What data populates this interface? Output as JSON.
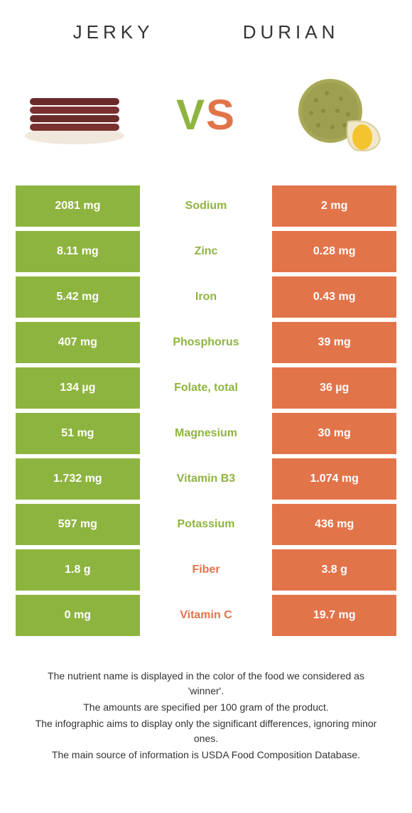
{
  "header": {
    "left_title": "JERKY",
    "right_title": "DURIAN",
    "vs_v": "V",
    "vs_s": "S"
  },
  "colors": {
    "left": "#8eb440",
    "right": "#e2744a",
    "background": "#ffffff",
    "text": "#333333"
  },
  "rows": [
    {
      "left": "2081 mg",
      "label": "Sodium",
      "right": "2 mg",
      "winner": "left"
    },
    {
      "left": "8.11 mg",
      "label": "Zinc",
      "right": "0.28 mg",
      "winner": "left"
    },
    {
      "left": "5.42 mg",
      "label": "Iron",
      "right": "0.43 mg",
      "winner": "left"
    },
    {
      "left": "407 mg",
      "label": "Phosphorus",
      "right": "39 mg",
      "winner": "left"
    },
    {
      "left": "134 µg",
      "label": "Folate, total",
      "right": "36 µg",
      "winner": "left"
    },
    {
      "left": "51 mg",
      "label": "Magnesium",
      "right": "30 mg",
      "winner": "left"
    },
    {
      "left": "1.732 mg",
      "label": "Vitamin B3",
      "right": "1.074 mg",
      "winner": "left"
    },
    {
      "left": "597 mg",
      "label": "Potassium",
      "right": "436 mg",
      "winner": "left"
    },
    {
      "left": "1.8 g",
      "label": "Fiber",
      "right": "3.8 g",
      "winner": "right"
    },
    {
      "left": "0 mg",
      "label": "Vitamin C",
      "right": "19.7 mg",
      "winner": "right"
    }
  ],
  "footer": {
    "line1": "The nutrient name is displayed in the color of the food we considered as 'winner'.",
    "line2": "The amounts are specified per 100 gram of the product.",
    "line3": "The infographic aims to display only the significant differences, ignoring minor ones.",
    "line4": "The main source of information is USDA Food Composition Database."
  }
}
